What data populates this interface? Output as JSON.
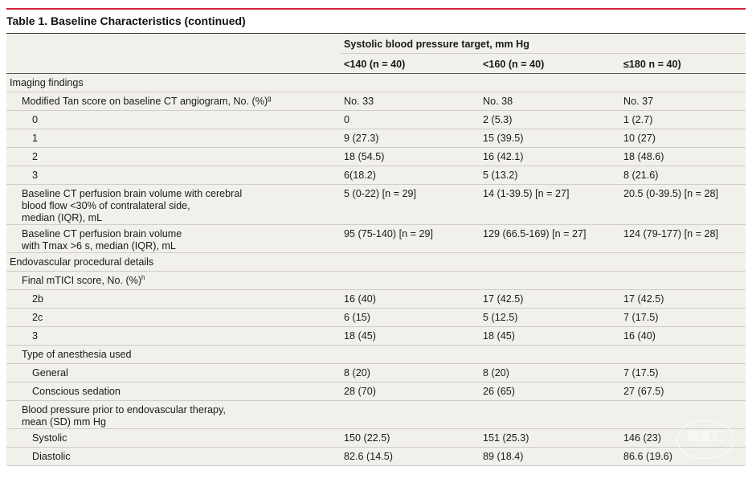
{
  "title": "Table 1. Baseline Characteristics (continued)",
  "header": {
    "group": "Systolic blood pressure target, mm Hg",
    "columns": [
      "<140 (n = 40)",
      "<160 (n = 40)",
      "≤180 n = 40)"
    ]
  },
  "rows": [
    {
      "label": "Imaging findings",
      "level": 0,
      "values": [
        "",
        "",
        ""
      ]
    },
    {
      "label": "Modified Tan score on baseline CT angiogram, No. (%)",
      "sup": "g",
      "level": 1,
      "values": [
        "No. 33",
        "No. 38",
        "No. 37"
      ]
    },
    {
      "label": "0",
      "level": 2,
      "values": [
        "0",
        "2 (5.3)",
        "1 (2.7)"
      ]
    },
    {
      "label": "1",
      "level": 2,
      "values": [
        "9 (27.3)",
        "15 (39.5)",
        "10 (27)"
      ]
    },
    {
      "label": "2",
      "level": 2,
      "values": [
        "18 (54.5)",
        "16 (42.1)",
        "18 (48.6)"
      ]
    },
    {
      "label": "3",
      "level": 2,
      "values": [
        "6(18.2)",
        "5 (13.2)",
        "8 (21.6)"
      ]
    },
    {
      "label": "Baseline CT perfusion brain volume with cerebral\nblood flow <30% of contralateral side,\nmedian (IQR), mL",
      "level": 1,
      "values": [
        "5 (0-22) [n = 29]",
        "14 (1-39.5) [n = 27]",
        "20.5 (0-39.5) [n = 28]"
      ]
    },
    {
      "label": "Baseline CT perfusion brain volume\nwith Tmax >6 s, median (IQR), mL",
      "level": 1,
      "values": [
        "95 (75-140) [n = 29]",
        "129 (66.5-169) [n = 27]",
        "124 (79-177) [n = 28]"
      ]
    },
    {
      "label": "Endovascular procedural details",
      "level": 0,
      "values": [
        "",
        "",
        ""
      ]
    },
    {
      "label": "Final mTICI score, No. (%)",
      "sup": "h",
      "level": 1,
      "values": [
        "",
        "",
        ""
      ]
    },
    {
      "label": "2b",
      "level": 2,
      "values": [
        "16 (40)",
        "17 (42.5)",
        "17 (42.5)"
      ]
    },
    {
      "label": "2c",
      "level": 2,
      "values": [
        "6 (15)",
        "5 (12.5)",
        "7 (17.5)"
      ]
    },
    {
      "label": "3",
      "level": 2,
      "values": [
        "18 (45)",
        "18 (45)",
        "16 (40)"
      ]
    },
    {
      "label": "Type of anesthesia used",
      "level": 1,
      "values": [
        "",
        "",
        ""
      ]
    },
    {
      "label": "General",
      "level": 2,
      "values": [
        "8 (20)",
        "8 (20)",
        "7 (17.5)"
      ]
    },
    {
      "label": "Conscious sedation",
      "level": 2,
      "values": [
        "28 (70)",
        "26 (65)",
        "27 (67.5)"
      ]
    },
    {
      "label": "Blood pressure prior to endovascular therapy,\nmean (SD) mm Hg",
      "level": 1,
      "values": [
        "",
        "",
        ""
      ]
    },
    {
      "label": "Systolic",
      "level": 2,
      "values": [
        "150 (22.5)",
        "151 (25.3)",
        "146 (23)"
      ]
    },
    {
      "label": "Diastolic",
      "level": 2,
      "values": [
        "82.6 (14.5)",
        "89 (18.4)",
        "86.6 (19.6)"
      ]
    }
  ],
  "watermark": "脑医汇",
  "colors": {
    "accent": "#d21f3c",
    "table_bg": "#f1f0ea"
  }
}
